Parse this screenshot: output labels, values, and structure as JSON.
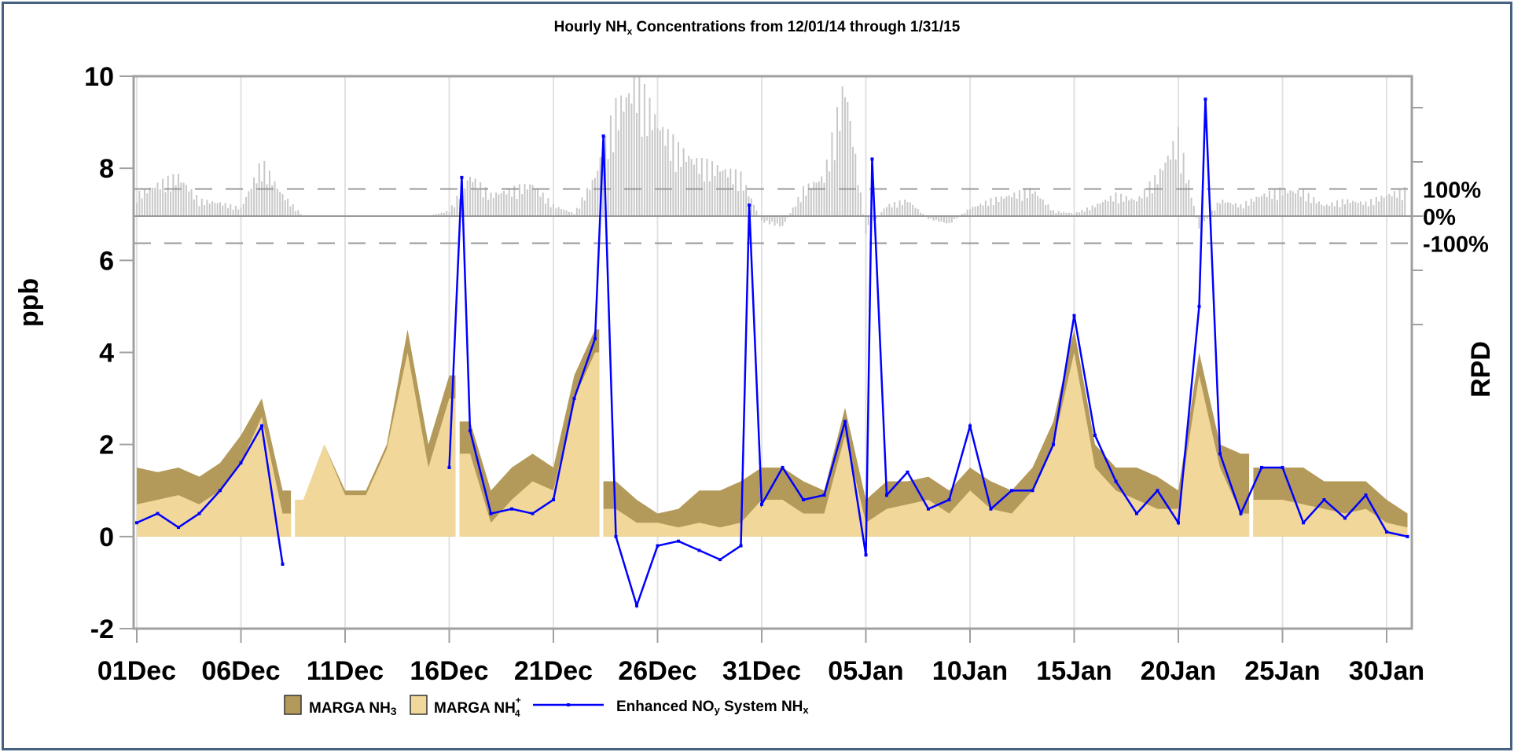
{
  "chart_data": {
    "type": "area",
    "title_main": "Hourly NH",
    "title_sub": "x",
    "title_rest": " Concentrations from 12/01/14 through 1/31/15",
    "title": "Hourly NHx Concentrations from 12/01/14 through 1/31/15",
    "ylabel": "ppb",
    "y2label": "RPD",
    "ylim": [
      -2,
      10
    ],
    "yticks": [
      -2,
      0,
      2,
      4,
      6,
      8,
      10
    ],
    "y2_labels": [
      {
        "value": 100,
        "label": "100%"
      },
      {
        "value": 0,
        "label": "0%"
      },
      {
        "value": -100,
        "label": "-100%"
      }
    ],
    "xtick_labels": [
      "01Dec",
      "06Dec",
      "11Dec",
      "16Dec",
      "21Dec",
      "26Dec",
      "31Dec",
      "05Jan",
      "10Jan",
      "15Jan",
      "20Jan",
      "25Jan",
      "30Jan"
    ],
    "xtick_days": [
      0,
      5,
      10,
      15,
      20,
      25,
      30,
      35,
      40,
      45,
      50,
      55,
      60
    ],
    "x_unit": "days since 12/01/14",
    "legend": [
      {
        "label": "MARGA NH",
        "sub": "3",
        "sup": "",
        "color": "#b39a5a"
      },
      {
        "label": "MARGA NH",
        "sub": "4",
        "sup": "+",
        "color": "#f1d89a"
      },
      {
        "label": "Enhanced NO",
        "sub": "y",
        "rest": " System NH",
        "sub2": "x",
        "color": "#0000ff"
      }
    ],
    "legend_position": "bottom",
    "grid": "vertical",
    "colors": {
      "nh3": "#b39a5a",
      "nh4": "#f1d89a",
      "nhx": "#0000ff",
      "rpd": "#c8c8c8",
      "frame": "#466080"
    },
    "days": [
      0,
      1,
      2,
      3,
      4,
      5,
      6,
      7,
      8,
      9,
      10,
      11,
      12,
      13,
      14,
      15,
      16,
      17,
      18,
      19,
      20,
      21,
      22,
      23,
      24,
      25,
      26,
      27,
      28,
      29,
      30,
      31,
      32,
      33,
      34,
      35,
      36,
      37,
      38,
      39,
      40,
      41,
      42,
      43,
      44,
      45,
      46,
      47,
      48,
      49,
      50,
      51,
      52,
      53,
      54,
      55,
      56,
      57,
      58,
      59,
      60,
      61
    ],
    "marga_total": [
      1.5,
      1.4,
      1.5,
      1.3,
      1.6,
      2.2,
      3.0,
      1.0,
      0.8,
      2.0,
      1.0,
      1.0,
      2.0,
      4.5,
      2.0,
      3.5,
      2.5,
      1.0,
      1.5,
      1.8,
      1.5,
      3.5,
      4.5,
      1.2,
      0.8,
      0.5,
      0.6,
      1.0,
      1.0,
      1.2,
      1.5,
      1.5,
      1.2,
      1.0,
      2.8,
      0.8,
      1.2,
      1.2,
      1.3,
      1.0,
      1.5,
      1.2,
      1.0,
      1.5,
      2.5,
      4.5,
      2.0,
      1.5,
      1.5,
      1.3,
      1.0,
      4.0,
      2.0,
      1.8,
      1.5,
      1.5,
      1.5,
      1.2,
      1.2,
      1.2,
      0.8,
      0.5
    ],
    "marga_nh4": [
      0.7,
      0.8,
      0.9,
      0.7,
      1.0,
      1.6,
      2.6,
      0.5,
      0.8,
      2.0,
      0.9,
      0.9,
      1.9,
      4.0,
      1.5,
      3.0,
      1.8,
      0.3,
      0.8,
      1.2,
      1.0,
      3.0,
      4.0,
      0.6,
      0.3,
      0.3,
      0.2,
      0.3,
      0.2,
      0.3,
      0.8,
      0.8,
      0.5,
      0.5,
      2.2,
      0.3,
      0.6,
      0.7,
      0.8,
      0.5,
      1.0,
      0.6,
      0.5,
      1.0,
      2.0,
      4.0,
      1.5,
      1.0,
      0.8,
      0.6,
      0.6,
      3.5,
      1.5,
      0.5,
      0.8,
      0.8,
      0.7,
      0.6,
      0.5,
      0.6,
      0.3,
      0.2
    ],
    "marga_gaps": [
      [
        7.4,
        7.6
      ],
      [
        15.3,
        15.5
      ],
      [
        22.2,
        22.4
      ],
      [
        53.4,
        53.6
      ]
    ],
    "nhx": [
      0.3,
      0.5,
      0.2,
      0.5,
      1.0,
      1.6,
      2.4,
      -0.6,
      null,
      null,
      null,
      null,
      null,
      null,
      null,
      1.5,
      2.3,
      0.5,
      0.6,
      0.5,
      0.8,
      3.0,
      4.3,
      0.0,
      -1.5,
      -0.2,
      -0.1,
      -0.3,
      -0.5,
      -0.2,
      0.7,
      1.5,
      0.8,
      0.9,
      2.5,
      -0.4,
      0.9,
      1.4,
      0.6,
      0.8,
      2.4,
      0.6,
      1.0,
      1.0,
      2.0,
      4.8,
      2.2,
      1.2,
      0.5,
      1.0,
      0.3,
      5.0,
      1.8,
      0.5,
      1.5,
      1.5,
      0.3,
      0.8,
      0.4,
      0.9,
      0.1,
      0.0
    ],
    "nhx_spikes": [
      {
        "day": 15.6,
        "value": 7.8
      },
      {
        "day": 22.4,
        "value": 8.7
      },
      {
        "day": 29.4,
        "value": 7.2
      },
      {
        "day": 35.3,
        "value": 8.2
      },
      {
        "day": 51.3,
        "value": 9.5
      }
    ],
    "rpd_percent": [
      80,
      120,
      150,
      60,
      50,
      30,
      200,
      80,
      0,
      0,
      0,
      0,
      0,
      0,
      0,
      20,
      150,
      80,
      100,
      120,
      40,
      10,
      150,
      400,
      500,
      350,
      250,
      200,
      180,
      150,
      -20,
      -40,
      100,
      150,
      500,
      -60,
      40,
      60,
      -10,
      -30,
      30,
      60,
      80,
      100,
      20,
      10,
      40,
      80,
      60,
      150,
      300,
      -50,
      60,
      40,
      80,
      100,
      90,
      40,
      60,
      50,
      80,
      100
    ]
  }
}
